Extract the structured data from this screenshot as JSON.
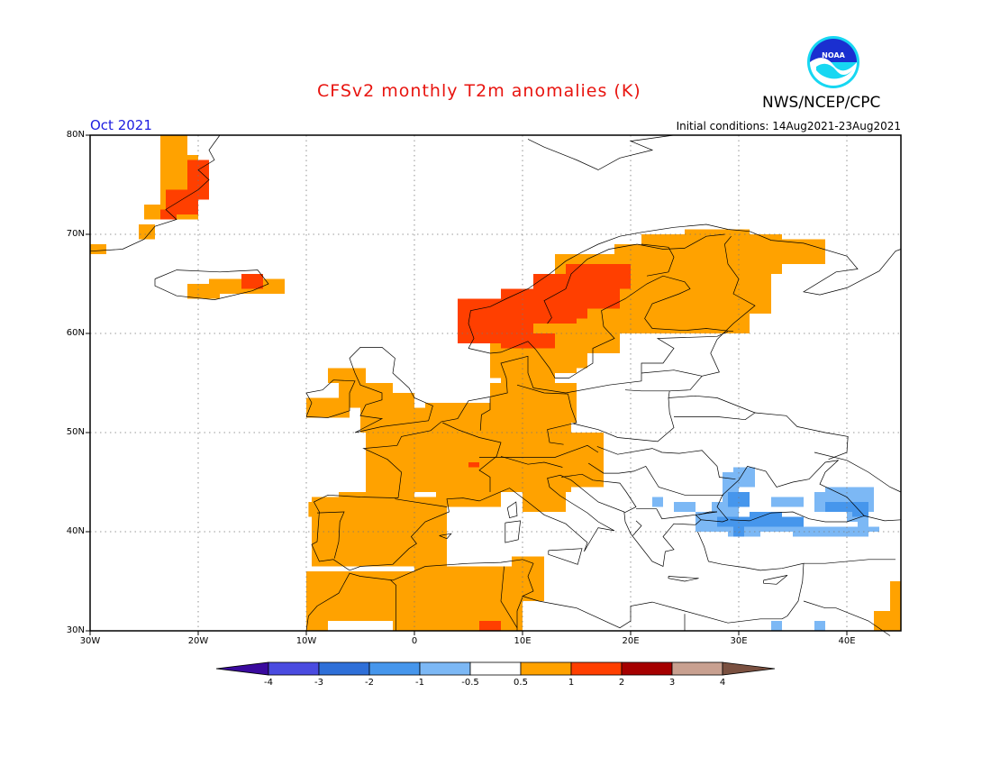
{
  "header": {
    "title": "CFSv2 monthly T2m anomalies (K)",
    "agency": "NWS/NCEP/CPC",
    "logo_icon": "noaa-logo-icon",
    "month": "Oct 2021",
    "initial_conditions": "Initial conditions: 14Aug2021-23Aug2021"
  },
  "map": {
    "lon_range": [
      -30,
      45
    ],
    "lat_range": [
      30,
      80
    ],
    "lat_labels": [
      "80N",
      "70N",
      "60N",
      "50N",
      "40N",
      "30N"
    ],
    "lon_labels": [
      "30W",
      "20W",
      "10W",
      "0",
      "10E",
      "20E",
      "30E",
      "40E"
    ]
  },
  "colorbar": {
    "labels": [
      "-4",
      "-3",
      "-2",
      "-1",
      "-0.5",
      "0.5",
      "1",
      "2",
      "3",
      "4"
    ],
    "colors": [
      "#3a0a9e",
      "#4a4be0",
      "#2e6fd8",
      "#4696ec",
      "#7cb8f5",
      "#ffffff",
      "#ffa200",
      "#ff3f00",
      "#a50000",
      "#c8a090",
      "#7a5040"
    ]
  },
  "colors": {
    "warm_1": "#ffa200",
    "warm_2": "#ff3f00",
    "warm_3": "#a50000",
    "cool_1": "#7cb8f5",
    "cool_2": "#4696ec"
  }
}
